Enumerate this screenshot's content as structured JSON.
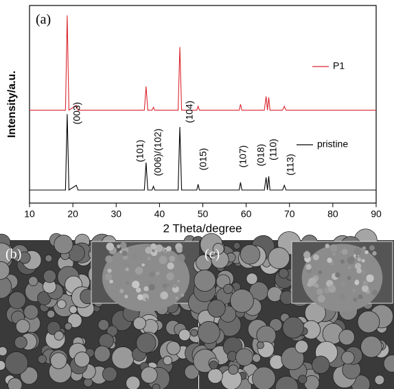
{
  "chart_data": {
    "type": "line",
    "panel_labels": [
      "(a)",
      "(b)",
      "(c)"
    ],
    "xlabel": "2 Theta/degree",
    "ylabel": "Intensity/a.u.",
    "x": [
      10,
      18.3,
      18.7,
      19.1,
      20.8,
      21.2,
      36.5,
      36.9,
      37.3,
      38.3,
      38.6,
      38.9,
      44.3,
      44.7,
      45.1,
      48.6,
      48.9,
      49.2,
      58.4,
      58.7,
      59.0,
      64.2,
      64.6,
      64.9,
      65.2,
      65.5,
      68.4,
      68.8,
      69.2,
      90
    ],
    "series": [
      {
        "name": "P1",
        "color": "#d9262e",
        "values": [
          47,
          47,
          95,
          47,
          49.5,
          47,
          47,
          59,
          47,
          47,
          48.5,
          47,
          47,
          79,
          47,
          47,
          49,
          47,
          47,
          50,
          47,
          47,
          54,
          47,
          53.5,
          47,
          47,
          49,
          47,
          47
        ]
      },
      {
        "name": "pristine",
        "color": "#000000",
        "values": [
          6.6,
          6.6,
          45,
          6.6,
          9,
          6.6,
          6.6,
          20.5,
          6.6,
          6.6,
          8.5,
          6.6,
          6.6,
          38.5,
          6.6,
          6.6,
          9.5,
          6.6,
          6.6,
          10.5,
          6.6,
          6.6,
          13,
          6.6,
          13.5,
          6.6,
          6.6,
          9,
          6.6,
          6.6
        ]
      }
    ],
    "annotations": [
      "(003)",
      "(101)",
      "(006)/(102)",
      "(104)",
      "(015)",
      "(107)",
      "(018)",
      "(110)",
      "(113)"
    ],
    "xlim": [
      10,
      90
    ],
    "xticks": [
      10,
      20,
      30,
      40,
      50,
      60,
      70,
      80,
      90
    ],
    "ylim": [
      0,
      100
    ]
  }
}
